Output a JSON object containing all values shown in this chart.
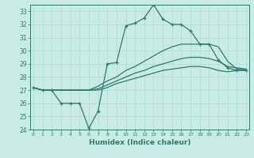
{
  "xlabel": "Humidex (Indice chaleur)",
  "bg_color": "#c8ebe5",
  "line_color": "#2d7a6e",
  "grid_color": "#b0d8d0",
  "ylim": [
    24,
    33.5
  ],
  "xlim": [
    -0.3,
    23.3
  ],
  "yticks": [
    24,
    25,
    26,
    27,
    28,
    29,
    30,
    31,
    32,
    33
  ],
  "xticks": [
    0,
    1,
    2,
    3,
    4,
    5,
    6,
    7,
    8,
    9,
    10,
    11,
    12,
    13,
    14,
    15,
    16,
    17,
    18,
    19,
    20,
    21,
    22,
    23
  ],
  "series1_x": [
    0,
    1,
    2,
    3,
    4,
    5,
    6,
    7,
    8,
    9,
    10,
    11,
    12,
    13,
    14,
    15,
    16,
    17,
    18,
    19,
    20,
    21,
    22,
    23
  ],
  "series1_y": [
    27.2,
    27.0,
    27.0,
    26.0,
    26.0,
    26.0,
    24.1,
    25.4,
    29.0,
    29.1,
    31.9,
    32.1,
    32.5,
    33.5,
    32.4,
    32.0,
    32.0,
    31.5,
    30.5,
    30.5,
    29.3,
    28.7,
    28.5,
    28.5
  ],
  "series2_x": [
    0,
    1,
    2,
    3,
    4,
    5,
    6,
    7,
    8,
    9,
    10,
    11,
    12,
    13,
    14,
    15,
    16,
    17,
    18,
    19,
    20,
    21,
    22,
    23
  ],
  "series2_y": [
    27.2,
    27.0,
    27.0,
    27.0,
    27.0,
    27.0,
    27.0,
    27.3,
    27.7,
    28.0,
    28.5,
    28.8,
    29.2,
    29.6,
    30.0,
    30.3,
    30.5,
    30.5,
    30.5,
    30.5,
    30.3,
    29.2,
    28.6,
    28.5
  ],
  "series3_x": [
    0,
    1,
    2,
    3,
    4,
    5,
    6,
    7,
    8,
    9,
    10,
    11,
    12,
    13,
    14,
    15,
    16,
    17,
    18,
    19,
    20,
    21,
    22,
    23
  ],
  "series3_y": [
    27.2,
    27.0,
    27.0,
    27.0,
    27.0,
    27.0,
    27.0,
    27.1,
    27.4,
    27.7,
    28.0,
    28.3,
    28.5,
    28.8,
    29.0,
    29.2,
    29.4,
    29.5,
    29.5,
    29.4,
    29.2,
    28.8,
    28.7,
    28.6
  ],
  "series4_x": [
    0,
    1,
    2,
    3,
    4,
    5,
    6,
    7,
    8,
    9,
    10,
    11,
    12,
    13,
    14,
    15,
    16,
    17,
    18,
    19,
    20,
    21,
    22,
    23
  ],
  "series4_y": [
    27.2,
    27.0,
    27.0,
    27.0,
    27.0,
    27.0,
    27.0,
    27.0,
    27.2,
    27.5,
    27.7,
    27.9,
    28.1,
    28.3,
    28.5,
    28.6,
    28.7,
    28.8,
    28.8,
    28.7,
    28.5,
    28.4,
    28.5,
    28.6
  ]
}
